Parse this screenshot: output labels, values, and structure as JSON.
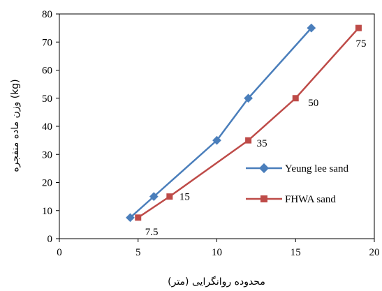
{
  "chart_data": {
    "type": "line",
    "xlabel": "محدوده روانگرایی (متر)",
    "ylabel": "وزن ماده منفجره (kg)",
    "xlim": [
      0,
      20
    ],
    "ylim": [
      0,
      80
    ],
    "x_ticks": [
      "0",
      "5",
      "10",
      "15",
      "20"
    ],
    "y_ticks": [
      "0",
      "10",
      "20",
      "30",
      "40",
      "50",
      "60",
      "70",
      "80"
    ],
    "grid": false,
    "legend_position": "right",
    "series": [
      {
        "name": "Yeung lee sand",
        "color": "#4A7EBB",
        "marker": "diamond",
        "x": [
          4.5,
          6,
          10,
          12,
          16
        ],
        "y": [
          7.5,
          15,
          35,
          50,
          75
        ]
      },
      {
        "name": "FHWA sand",
        "color": "#BE4B48",
        "marker": "square",
        "x": [
          5,
          7,
          12,
          15,
          19
        ],
        "y": [
          7.5,
          15,
          35,
          50,
          75
        ]
      }
    ],
    "data_labels": [
      "7.5",
      "15",
      "35",
      "50",
      "75"
    ]
  }
}
